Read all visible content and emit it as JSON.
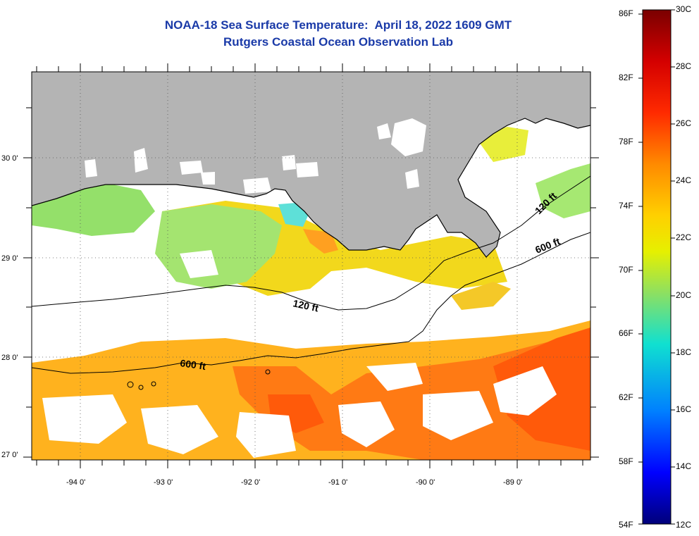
{
  "header": {
    "title": "NOAA-18 Sea Surface Temperature:  April 18, 2022 1609 GMT",
    "subtitle": "Rutgers Coastal Ocean Observation Lab"
  },
  "map": {
    "lon_range": [
      -94.5,
      -88.0
    ],
    "lat_range": [
      27.0,
      30.9
    ],
    "lon_ticks": [
      "-94 0'",
      "-93 0'",
      "-92 0'",
      "-91 0'",
      "-90 0'",
      "-89 0'"
    ],
    "lat_ticks": [
      "30 0'",
      "29 0'",
      "28 0'",
      "27 0'"
    ],
    "grid": true,
    "land_color": "#b4b4b4",
    "cloud_color": "#ffffff",
    "contours": [
      "120 ft",
      "600 ft",
      "120 ft",
      "600 ft"
    ]
  },
  "colorbar": {
    "fahrenheit_labels": [
      "86F",
      "82F",
      "78F",
      "74F",
      "70F",
      "66F",
      "62F",
      "58F",
      "54F"
    ],
    "celsius_labels": [
      "30C",
      "28C",
      "26C",
      "24C",
      "22C",
      "20C",
      "18C",
      "16C",
      "14C",
      "12C"
    ],
    "range_c": [
      12,
      30
    ],
    "stops": [
      "#7a0000",
      "#d40000",
      "#ff2a00",
      "#ff8a00",
      "#ffd000",
      "#e6f000",
      "#8ee060",
      "#10e0d0",
      "#0080ff",
      "#0000ff",
      "#00007a"
    ]
  }
}
